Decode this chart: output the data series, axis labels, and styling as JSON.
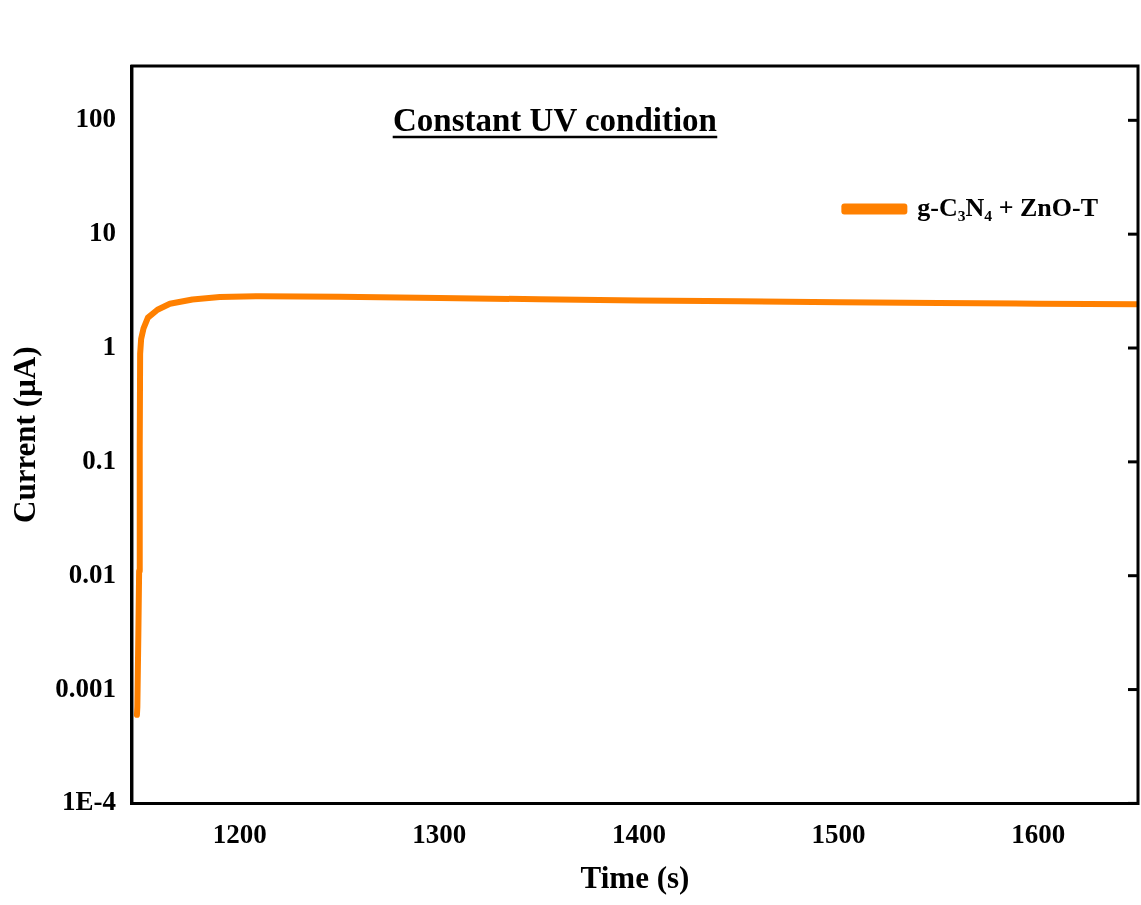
{
  "chart_data": {
    "type": "line",
    "title": "Constant UV condition",
    "xlabel": "Time (s)",
    "ylabel": "Current (µA)",
    "log": "y",
    "xlim": [
      1146,
      1650
    ],
    "xticks": [
      1200,
      1300,
      1400,
      1500,
      1600
    ],
    "ylim": [
      0.0001,
      300
    ],
    "yticks": [
      {
        "value": 0.0001,
        "label": "1E-4"
      },
      0.001,
      0.01,
      0.1,
      1,
      10,
      100
    ],
    "legend": "top right",
    "grid": false,
    "marker": "none",
    "line_style": "solid",
    "series": [
      {
        "name": "g-C₃N₄ + ZnO-T",
        "color": "#ff8000",
        "x": [
          1148.5,
          1148.7,
          1149.2,
          1149.6,
          1149.9,
          1150.1,
          1150.6,
          1151.8,
          1154,
          1158.8,
          1165,
          1176.3,
          1190,
          1210,
          1250,
          1300,
          1350,
          1400,
          1450,
          1500,
          1550,
          1600,
          1650
        ],
        "values": [
          0.0006,
          0.0007,
          0.003,
          0.011,
          0.135,
          0.89,
          1.2,
          1.49,
          1.85,
          2.17,
          2.45,
          2.67,
          2.8,
          2.85,
          2.82,
          2.75,
          2.68,
          2.62,
          2.57,
          2.52,
          2.48,
          2.45,
          2.42
        ]
      }
    ]
  }
}
